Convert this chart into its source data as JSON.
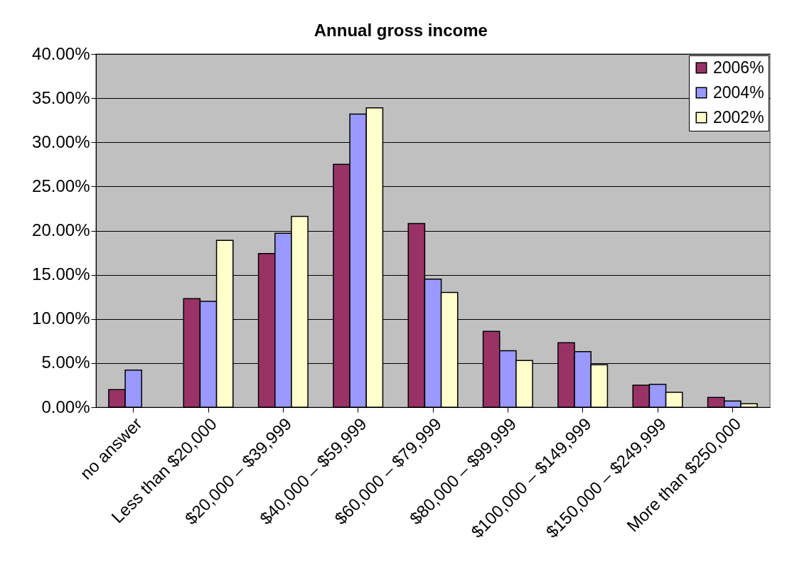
{
  "chart_data": {
    "type": "bar",
    "title": "Annual gross income",
    "categories": [
      "no answer",
      "Less than $20,000",
      "$20,000 – $39,999",
      "$40,000 – $59,999",
      "$60,000 – $79,999",
      "$80,000 – $99,999",
      "$100,000 – $149,999",
      "$150,000 – $249,999",
      "More than $250,000"
    ],
    "series": [
      {
        "name": "2006%",
        "color": "#993366",
        "values": [
          2.0,
          12.3,
          17.4,
          27.5,
          20.8,
          8.6,
          7.3,
          2.5,
          1.1
        ]
      },
      {
        "name": "2004%",
        "color": "#9999ff",
        "values": [
          4.2,
          12.0,
          19.7,
          33.2,
          14.5,
          6.4,
          6.3,
          2.6,
          0.7
        ]
      },
      {
        "name": "2002%",
        "color": "#ffffcc",
        "values": [
          null,
          18.9,
          21.6,
          33.9,
          13.0,
          5.3,
          4.8,
          1.7,
          0.4
        ]
      }
    ],
    "ylim": [
      0,
      40
    ],
    "yticks": [
      {
        "value": 0,
        "label": "0.00%"
      },
      {
        "value": 5,
        "label": "5.00%"
      },
      {
        "value": 10,
        "label": "10.00%"
      },
      {
        "value": 15,
        "label": "15.00%"
      },
      {
        "value": 20,
        "label": "20.00%"
      },
      {
        "value": 25,
        "label": "25.00%"
      },
      {
        "value": 30,
        "label": "30.00%"
      },
      {
        "value": 35,
        "label": "35.00%"
      },
      {
        "value": 40,
        "label": "40.00%"
      }
    ],
    "grid": "y",
    "legend": "top right"
  }
}
